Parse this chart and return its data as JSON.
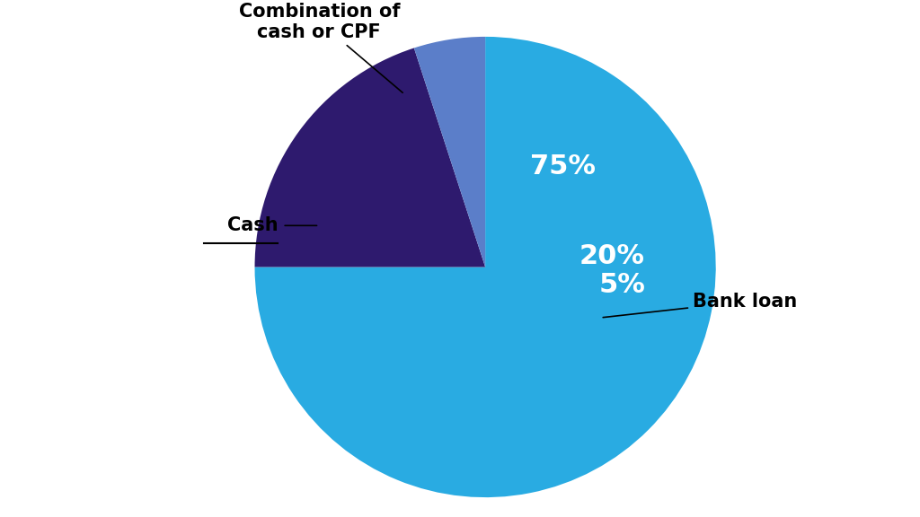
{
  "slices": [
    75,
    20,
    5
  ],
  "labels": [
    "Bank loan",
    "Combination of\ncash or CPF",
    "Cash"
  ],
  "colors": [
    "#29ABE2",
    "#2E1A6E",
    "#5B7EC9"
  ],
  "pct_labels": [
    "75%",
    "20%",
    "5%"
  ],
  "background_color": "#FFFFFF",
  "label_fontsize": 15,
  "pct_fontsize": 22,
  "annotation_fontsize": 15,
  "startangle": 90
}
